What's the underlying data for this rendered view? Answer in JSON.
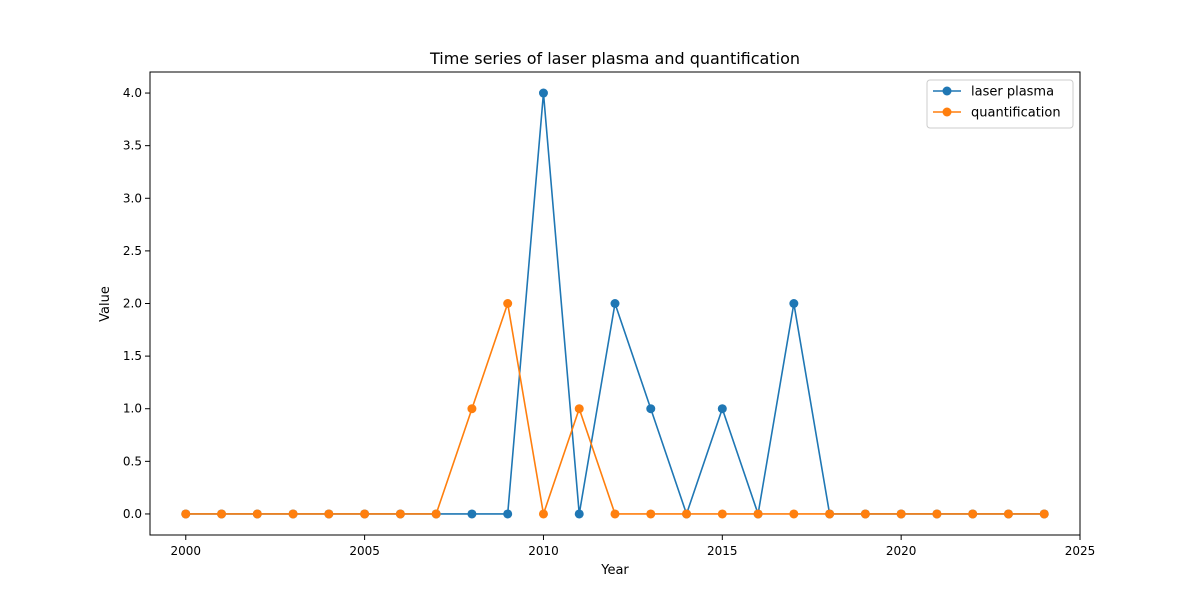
{
  "chart_data": {
    "type": "line",
    "title": "Time series of laser plasma and quantification",
    "xlabel": "Year",
    "ylabel": "Value",
    "xlim": [
      1999,
      2025
    ],
    "ylim": [
      -0.2,
      4.2
    ],
    "xticks": [
      2000,
      2005,
      2010,
      2015,
      2020,
      2025
    ],
    "xtick_labels": [
      "2000",
      "2005",
      "2010",
      "2015",
      "2020",
      "2025"
    ],
    "yticks": [
      0.0,
      0.5,
      1.0,
      1.5,
      2.0,
      2.5,
      3.0,
      3.5,
      4.0
    ],
    "ytick_labels": [
      "0.0",
      "0.5",
      "1.0",
      "1.5",
      "2.0",
      "2.5",
      "3.0",
      "3.5",
      "4.0"
    ],
    "grid": false,
    "legend_position": "top-right",
    "x": [
      2000,
      2001,
      2002,
      2003,
      2004,
      2005,
      2006,
      2007,
      2008,
      2009,
      2010,
      2011,
      2012,
      2013,
      2014,
      2015,
      2016,
      2017,
      2018,
      2019,
      2020,
      2021,
      2022,
      2023,
      2024
    ],
    "series": [
      {
        "name": "laser plasma",
        "color": "#1f77b4",
        "values": [
          0,
          0,
          0,
          0,
          0,
          0,
          0,
          0,
          0,
          0,
          4,
          0,
          2,
          1,
          0,
          1,
          0,
          2,
          0,
          0,
          0,
          0,
          0,
          0,
          0
        ]
      },
      {
        "name": "quantification",
        "color": "#ff7f0e",
        "values": [
          0,
          0,
          0,
          0,
          0,
          0,
          0,
          0,
          1,
          2,
          0,
          1,
          0,
          0,
          0,
          0,
          0,
          0,
          0,
          0,
          0,
          0,
          0,
          0,
          0
        ]
      }
    ]
  }
}
